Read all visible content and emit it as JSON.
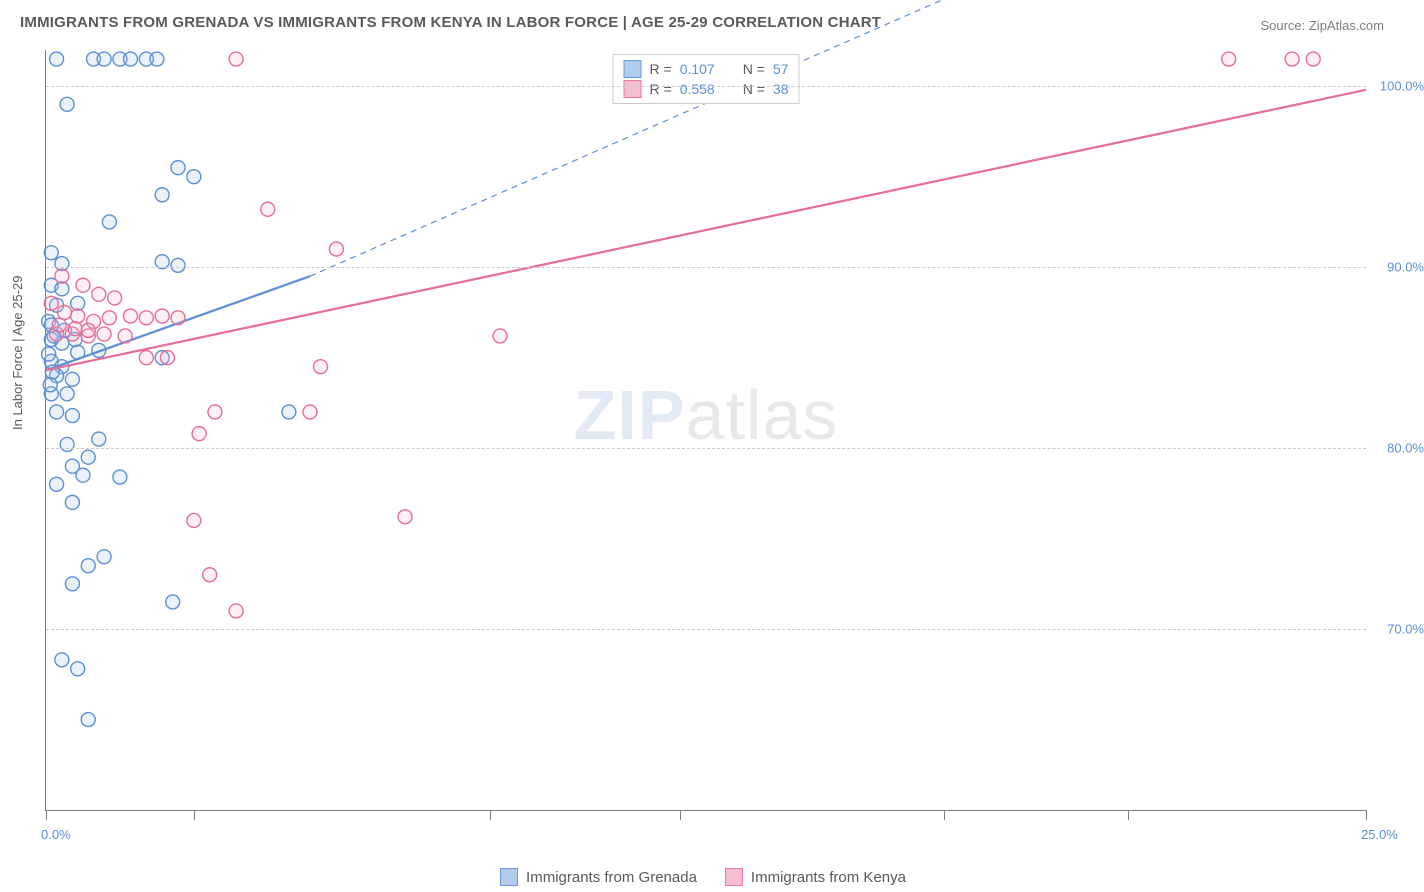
{
  "title": "IMMIGRANTS FROM GRENADA VS IMMIGRANTS FROM KENYA IN LABOR FORCE | AGE 25-29 CORRELATION CHART",
  "source_label": "Source: ",
  "source_name": "ZipAtlas.com",
  "yaxis_title": "In Labor Force | Age 25-29",
  "watermark_main": "ZIP",
  "watermark_tail": "atlas",
  "chart": {
    "type": "scatter-correlation",
    "xlim": [
      0,
      25
    ],
    "ylim": [
      60,
      102
    ],
    "x_ticks_at": [
      0,
      2.8,
      8.4,
      12.0,
      17.0,
      20.5,
      25.0
    ],
    "x_labels": [
      {
        "x": 0,
        "text": "0.0%"
      },
      {
        "x": 25,
        "text": "25.0%"
      }
    ],
    "y_gridlines": [
      70,
      80,
      90,
      100
    ],
    "y_labels": [
      {
        "y": 70,
        "text": "70.0%"
      },
      {
        "y": 80,
        "text": "80.0%"
      },
      {
        "y": 90,
        "text": "90.0%"
      },
      {
        "y": 100,
        "text": "100.0%"
      }
    ],
    "background_color": "#ffffff",
    "grid_color": "#cccccc",
    "marker_radius": 7,
    "marker_stroke_width": 1.4,
    "marker_fill_opacity": 0.22,
    "series": [
      {
        "name": "Immigrants from Grenada",
        "color_stroke": "#5b8fd6",
        "color_fill": "#a8c6ea",
        "R": "0.107",
        "N": "57",
        "trend": {
          "x1": 0,
          "y1": 84.3,
          "x2": 5.0,
          "y2": 89.5,
          "dash_x2": 25,
          "dash_y2": 115,
          "stroke_width": 2.2
        },
        "points": [
          [
            0.2,
            101.5
          ],
          [
            0.9,
            101.5
          ],
          [
            1.1,
            101.5
          ],
          [
            1.4,
            101.5
          ],
          [
            1.6,
            101.5
          ],
          [
            1.9,
            101.5
          ],
          [
            2.1,
            101.5
          ],
          [
            0.4,
            99.0
          ],
          [
            2.5,
            95.5
          ],
          [
            2.8,
            95.0
          ],
          [
            2.2,
            94.0
          ],
          [
            1.2,
            92.5
          ],
          [
            0.1,
            90.8
          ],
          [
            0.3,
            90.2
          ],
          [
            2.2,
            90.3
          ],
          [
            2.5,
            90.1
          ],
          [
            0.1,
            89.0
          ],
          [
            0.3,
            88.8
          ],
          [
            0.6,
            88.0
          ],
          [
            0.2,
            87.9
          ],
          [
            0.05,
            87.0
          ],
          [
            0.1,
            86.0
          ],
          [
            0.3,
            85.8
          ],
          [
            0.6,
            85.3
          ],
          [
            1.0,
            85.4
          ],
          [
            2.2,
            85.0
          ],
          [
            0.1,
            84.8
          ],
          [
            0.3,
            84.5
          ],
          [
            0.2,
            84.0
          ],
          [
            0.5,
            83.8
          ],
          [
            0.1,
            83.0
          ],
          [
            0.4,
            83.0
          ],
          [
            4.6,
            82.0
          ],
          [
            0.2,
            82.0
          ],
          [
            0.5,
            81.8
          ],
          [
            1.0,
            80.5
          ],
          [
            0.4,
            80.2
          ],
          [
            0.8,
            79.5
          ],
          [
            0.5,
            79.0
          ],
          [
            0.7,
            78.5
          ],
          [
            1.4,
            78.4
          ],
          [
            0.2,
            78.0
          ],
          [
            0.5,
            77.0
          ],
          [
            1.1,
            74.0
          ],
          [
            0.8,
            73.5
          ],
          [
            0.5,
            72.5
          ],
          [
            2.4,
            71.5
          ],
          [
            0.3,
            68.3
          ],
          [
            0.6,
            67.8
          ],
          [
            0.8,
            65.0
          ],
          [
            0.1,
            86.8
          ],
          [
            0.15,
            86.2
          ],
          [
            0.35,
            86.5
          ],
          [
            0.55,
            86.0
          ],
          [
            0.05,
            85.2
          ],
          [
            0.12,
            84.2
          ],
          [
            0.08,
            83.5
          ]
        ]
      },
      {
        "name": "Immigrants from Kenya",
        "color_stroke": "#e86d96",
        "color_fill": "#f4b8cb",
        "R": "0.558",
        "N": "38",
        "trend": {
          "x1": 0,
          "y1": 84.3,
          "x2": 25,
          "y2": 99.8,
          "stroke_width": 2.2
        },
        "points": [
          [
            3.6,
            101.5
          ],
          [
            22.4,
            101.5
          ],
          [
            23.6,
            101.5
          ],
          [
            24.0,
            101.5
          ],
          [
            4.2,
            93.2
          ],
          [
            5.5,
            91.0
          ],
          [
            0.3,
            89.5
          ],
          [
            0.7,
            89.0
          ],
          [
            1.0,
            88.5
          ],
          [
            1.3,
            88.3
          ],
          [
            1.2,
            87.2
          ],
          [
            1.6,
            87.3
          ],
          [
            1.9,
            87.2
          ],
          [
            2.2,
            87.3
          ],
          [
            2.5,
            87.2
          ],
          [
            0.2,
            86.3
          ],
          [
            0.5,
            86.3
          ],
          [
            0.8,
            86.2
          ],
          [
            1.1,
            86.3
          ],
          [
            1.5,
            86.2
          ],
          [
            8.6,
            86.2
          ],
          [
            1.9,
            85.0
          ],
          [
            2.3,
            85.0
          ],
          [
            5.2,
            84.5
          ],
          [
            3.2,
            82.0
          ],
          [
            5.0,
            82.0
          ],
          [
            2.9,
            80.8
          ],
          [
            2.8,
            76.0
          ],
          [
            6.8,
            76.2
          ],
          [
            3.1,
            73.0
          ],
          [
            3.6,
            71.0
          ],
          [
            0.1,
            88.0
          ],
          [
            0.35,
            87.5
          ],
          [
            0.6,
            87.3
          ],
          [
            0.9,
            87.0
          ],
          [
            0.25,
            86.8
          ],
          [
            0.55,
            86.6
          ],
          [
            0.8,
            86.5
          ]
        ]
      }
    ],
    "legend_top": {
      "r_label": "R =",
      "n_label": "N ="
    }
  }
}
